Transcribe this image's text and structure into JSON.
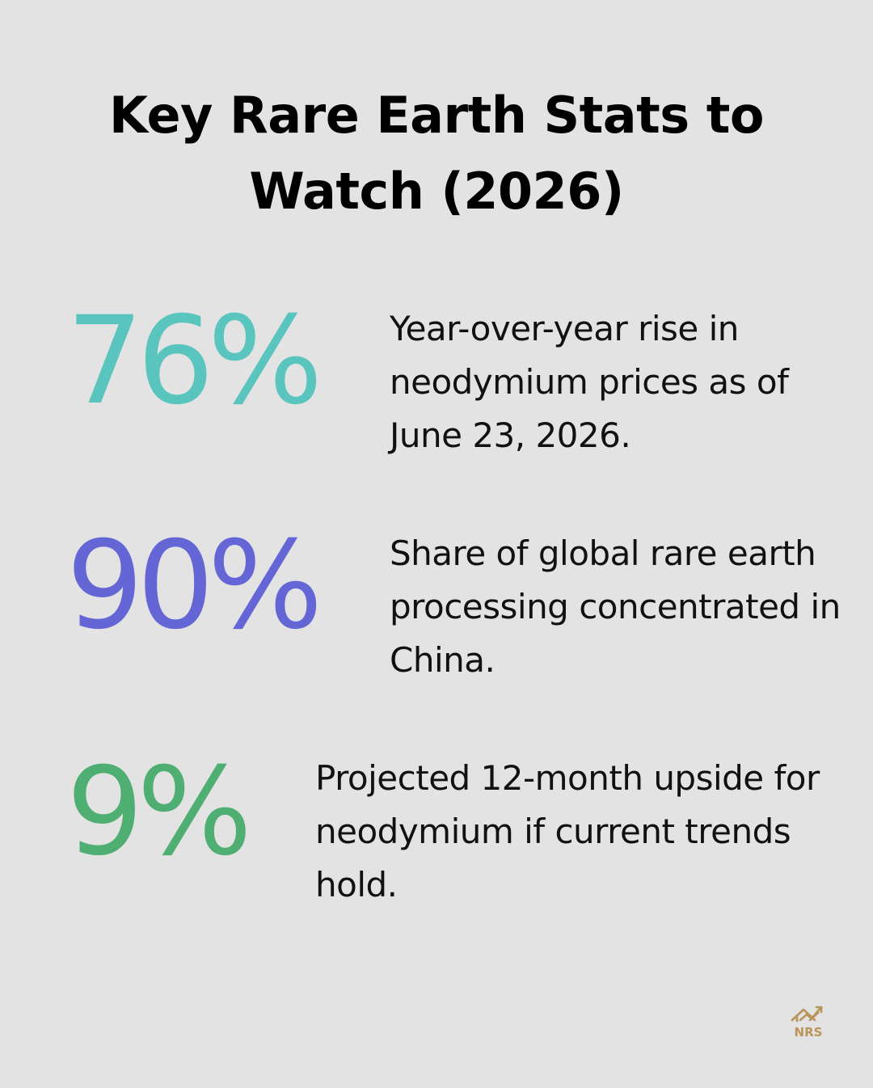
{
  "title": "Key Rare Earth Stats to Watch (2026)",
  "stats": [
    {
      "value": "76%",
      "color": "#5ac4be",
      "description": "Year-over-year rise in neodymium prices as of June 23, 2026."
    },
    {
      "value": "90%",
      "color": "#6466d6",
      "description": "Share of global rare earth processing concentrated in China."
    },
    {
      "value": "9%",
      "color": "#4fae72",
      "description": "Projected 12-month upside for neodymium if current trends hold."
    }
  ],
  "logo": {
    "text": "NRS",
    "icon": "house-chart-arrow-icon",
    "color": "#b9955a"
  }
}
